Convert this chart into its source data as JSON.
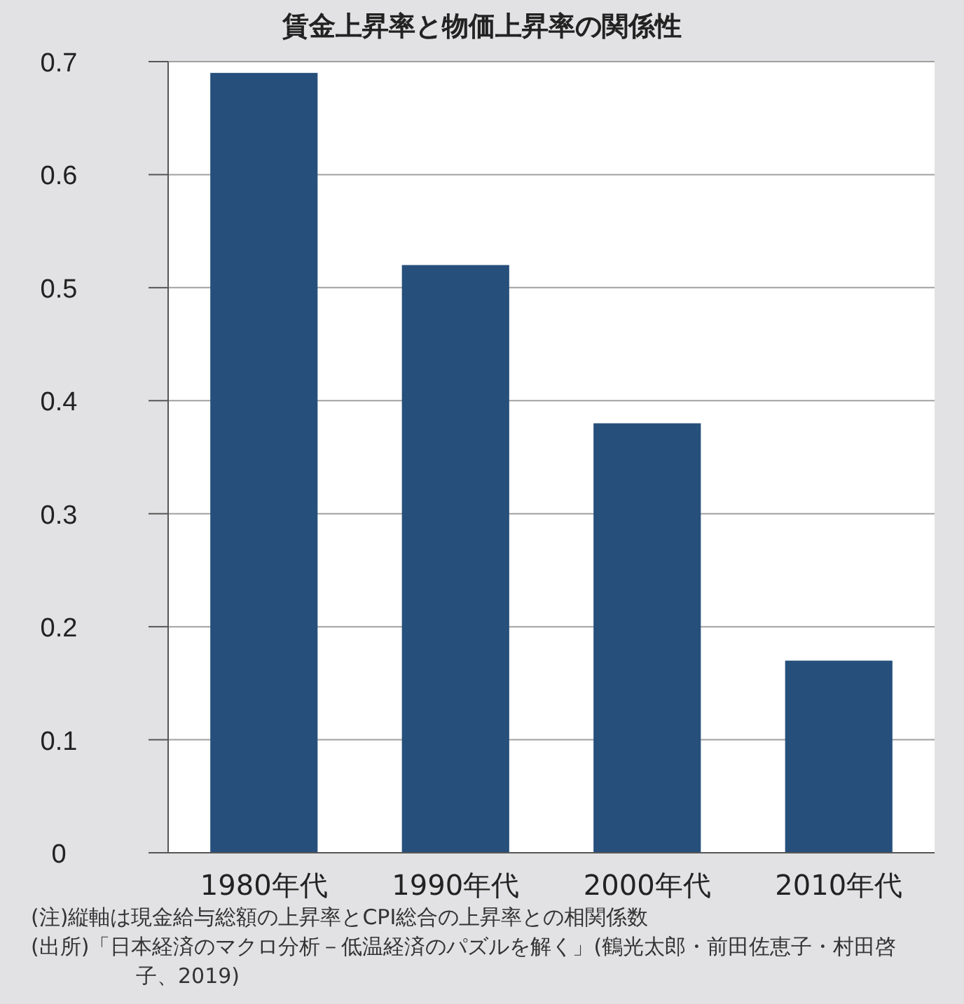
{
  "chart_data": {
    "type": "bar",
    "title": "賃金上昇率と物価上昇率の関係性",
    "categories": [
      "1980年代",
      "1990年代",
      "2000年代",
      "2010年代"
    ],
    "values": [
      0.69,
      0.52,
      0.38,
      0.17
    ],
    "color": "#264f7b",
    "ylim": [
      0,
      0.7
    ],
    "yticks": [
      0,
      0.1,
      0.2,
      0.3,
      0.4,
      0.5,
      0.6,
      0.7
    ],
    "grid": "y",
    "annotations": [
      "(注)縦軸は現金給与総額の上昇率とCPI総合の上昇率との相関係数",
      "(出所)「日本経済のマクロ分析－低温経済のパズルを解く」(鶴光太郎・前田佐恵子・村田啓子、2019)"
    ]
  }
}
